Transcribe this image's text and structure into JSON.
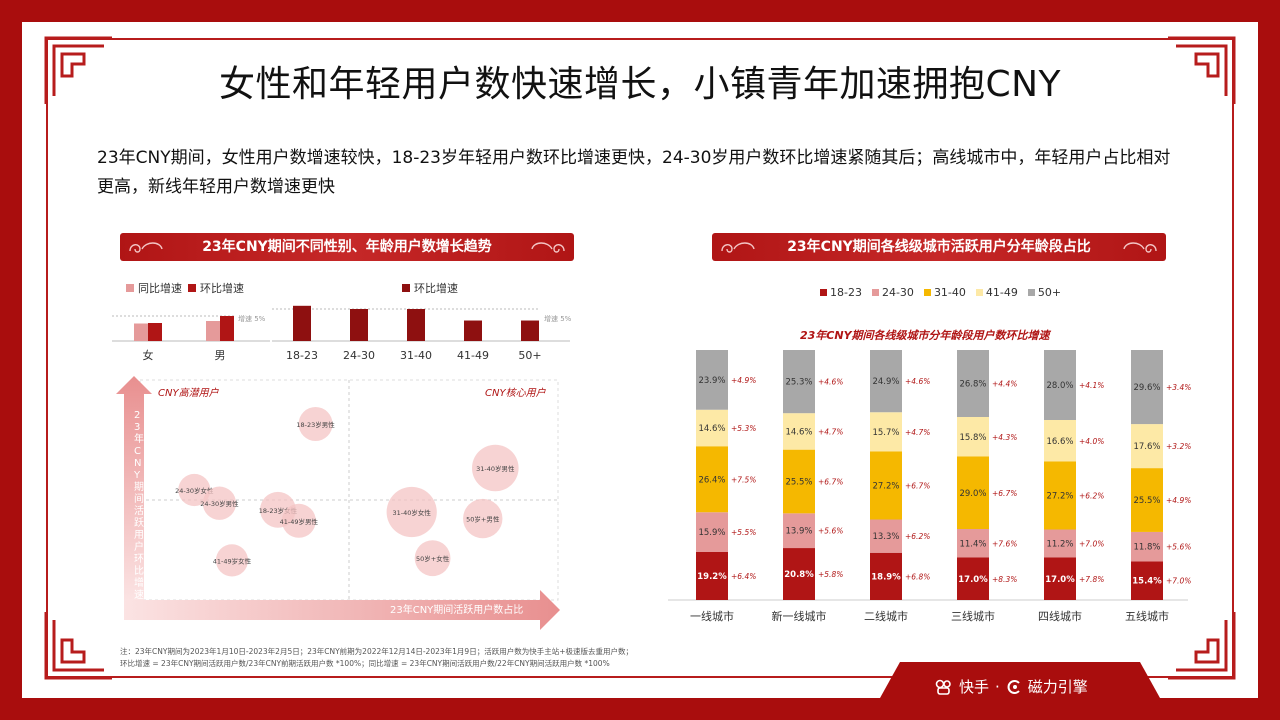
{
  "title": "女性和年轻用户数快速增长，小镇青年加速拥抱CNY",
  "description": "23年CNY期间，女性用户数增速较快，18-23岁年轻用户数环比增速更快，24-30岁用户数环比增速紧随其后；高线城市中，年轻用户占比相对更高，新线年轻用户数增速更快",
  "left_panel": {
    "banner": "23年CNY期间不同性别、年龄用户数增长趋势",
    "legend_yoy": "同比增速",
    "legend_mom": "环比增速",
    "legend_mom2": "环比增速",
    "ref_label_1": "增速 5%",
    "ref_label_2": "增速 5%",
    "quadrant_label_left": "CNY高潜用户",
    "quadrant_label_right": "CNY核心用户",
    "y_axis_label": "23年CNY期间活跃用户环比增速",
    "x_axis_label": "23年CNY期间活跃用户数占比"
  },
  "right_panel": {
    "banner": "23年CNY期间各线级城市活跃用户分年龄段占比",
    "subtitle": "23年CNY期间各线级城市分年龄段用户数环比增速"
  },
  "note_line1": "注：23年CNY期间为2023年1月10日-2023年2月5日；23年CNY前期为2022年12月14日-2023年1月9日；活跃用户数为快手主站+极速版去重用户数；",
  "note_line2": "环比增速 = 23年CNY期间活跃用户数/23年CNY前期活跃用户数 *100%；同比增速 = 23年CNY期间活跃用户数/22年CNY期间活跃用户数 *100%",
  "brand": {
    "kuaishou": "快手",
    "sep": "·",
    "cili": "磁力引擎"
  },
  "colors": {
    "dark_red": "#b01515",
    "pink": "#e59a9a",
    "yellow": "#f5b800",
    "light_yellow": "#fde9a6",
    "gray": "#a8a8a8"
  },
  "chart_data": [
    {
      "type": "bar",
      "id": "gender",
      "categories": [
        "女",
        "男"
      ],
      "series": [
        {
          "name": "同比增速",
          "color": "#e59a9a",
          "values": [
            3.5,
            4.0
          ]
        },
        {
          "name": "环比增速",
          "color": "#b01515",
          "values": [
            3.6,
            5.0
          ]
        }
      ],
      "reference_line": 5
    },
    {
      "type": "bar",
      "id": "age",
      "categories": [
        "18-23",
        "24-30",
        "31-40",
        "41-49",
        "50+"
      ],
      "series": [
        {
          "name": "环比增速",
          "color": "#8e1010",
          "values": [
            5.5,
            5.0,
            5.0,
            3.2,
            3.2
          ]
        }
      ],
      "reference_line": 5
    },
    {
      "type": "scatter",
      "id": "bubble",
      "xlabel": "23年CNY期间活跃用户数占比",
      "ylabel": "23年CNY期间活跃用户环比增速",
      "points": [
        {
          "label": "18-23岁男性",
          "x": 0.42,
          "y": 0.8,
          "size": 0.5
        },
        {
          "label": "24-30岁女性",
          "x": 0.13,
          "y": 0.5,
          "size": 0.45
        },
        {
          "label": "24-30岁男性",
          "x": 0.19,
          "y": 0.44,
          "size": 0.48
        },
        {
          "label": "18-23岁女性",
          "x": 0.33,
          "y": 0.41,
          "size": 0.55
        },
        {
          "label": "41-49岁男性",
          "x": 0.38,
          "y": 0.36,
          "size": 0.5
        },
        {
          "label": "41-49岁女性",
          "x": 0.22,
          "y": 0.18,
          "size": 0.45
        },
        {
          "label": "31-40岁女性",
          "x": 0.65,
          "y": 0.4,
          "size": 0.95
        },
        {
          "label": "31-40岁男性",
          "x": 0.85,
          "y": 0.6,
          "size": 0.85
        },
        {
          "label": "50岁+男性",
          "x": 0.82,
          "y": 0.37,
          "size": 0.65
        },
        {
          "label": "50岁+女性",
          "x": 0.7,
          "y": 0.19,
          "size": 0.55
        }
      ]
    },
    {
      "type": "bar",
      "id": "city_stack",
      "stacked": true,
      "legend": [
        "18-23",
        "24-30",
        "31-40",
        "41-49",
        "50+"
      ],
      "categories": [
        "一线城市",
        "新一线城市",
        "二线城市",
        "三线城市",
        "四线城市",
        "五线城市"
      ],
      "series": [
        {
          "name": "18-23",
          "color": "#b01515",
          "values": [
            19.2,
            20.8,
            18.9,
            17.0,
            17.0,
            15.4
          ],
          "growth": [
            "+6.4%",
            "+5.8%",
            "+6.8%",
            "+8.3%",
            "+7.8%",
            "+7.0%"
          ]
        },
        {
          "name": "24-30",
          "color": "#e59a9a",
          "values": [
            15.9,
            13.9,
            13.3,
            11.4,
            11.2,
            11.8
          ],
          "growth": [
            "+5.5%",
            "+5.6%",
            "+6.2%",
            "+7.6%",
            "+7.0%",
            "+5.6%"
          ]
        },
        {
          "name": "31-40",
          "color": "#f5b800",
          "values": [
            26.4,
            25.5,
            27.2,
            29.0,
            27.2,
            25.5
          ],
          "growth": [
            "+7.5%",
            "+6.7%",
            "+6.7%",
            "+6.7%",
            "+6.2%",
            "+4.9%"
          ]
        },
        {
          "name": "41-49",
          "color": "#fde9a6",
          "values": [
            14.6,
            14.6,
            15.7,
            15.8,
            16.6,
            17.6
          ],
          "growth": [
            "+5.3%",
            "+4.7%",
            "+4.7%",
            "+4.3%",
            "+4.0%",
            "+3.2%"
          ]
        },
        {
          "name": "50+",
          "color": "#a8a8a8",
          "values": [
            23.9,
            25.3,
            24.9,
            26.8,
            28.0,
            29.6
          ],
          "growth": [
            "+4.9%",
            "+4.6%",
            "+4.6%",
            "+4.4%",
            "+4.1%",
            "+3.4%"
          ]
        }
      ],
      "title": "23年CNY期间各线级城市分年龄段用户数环比增速"
    }
  ]
}
